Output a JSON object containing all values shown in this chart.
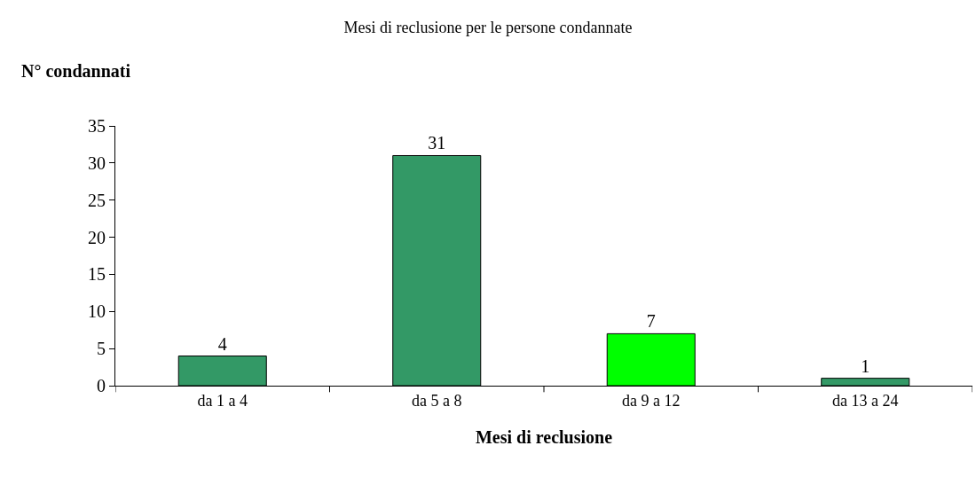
{
  "chart_data": {
    "type": "bar",
    "title": "Mesi di reclusione per le persone condannate",
    "xlabel": "Mesi di reclusione",
    "ylabel": "N° condannati",
    "categories": [
      "da 1 a 4",
      "da 5 a 8",
      "da 9 a 12",
      "da 13 a 24"
    ],
    "values": [
      4,
      31,
      7,
      1
    ],
    "colors": [
      "#339966",
      "#339966",
      "#00ff00",
      "#339966"
    ],
    "ylim": [
      0,
      35
    ],
    "yticks": [
      0,
      5,
      10,
      15,
      20,
      25,
      30,
      35
    ],
    "data_labels": true
  }
}
